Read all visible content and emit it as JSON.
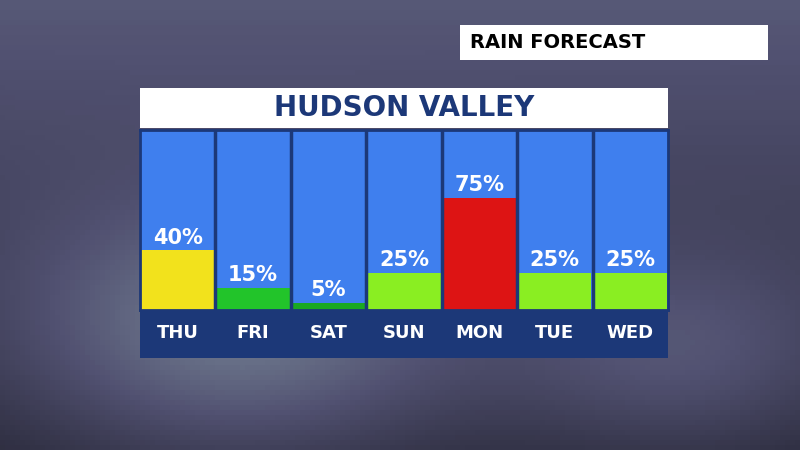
{
  "chart_data": {
    "type": "bar",
    "title": "HUDSON VALLEY",
    "subtitle": "RAIN FORECAST",
    "categories": [
      "THU",
      "FRI",
      "SAT",
      "SUN",
      "MON",
      "TUE",
      "WED"
    ],
    "values": [
      40,
      15,
      5,
      25,
      75,
      25,
      25
    ],
    "value_labels": [
      "40%",
      "15%",
      "5%",
      "25%",
      "75%",
      "25%",
      "25%"
    ],
    "colors": [
      "#f2e21c",
      "#22c42a",
      "#1aa822",
      "#8aee22",
      "#dd1414",
      "#8aee22",
      "#8aee22"
    ],
    "ylim": [
      0,
      120
    ],
    "data_labels": true,
    "tick_labels": "x",
    "grid": false
  }
}
